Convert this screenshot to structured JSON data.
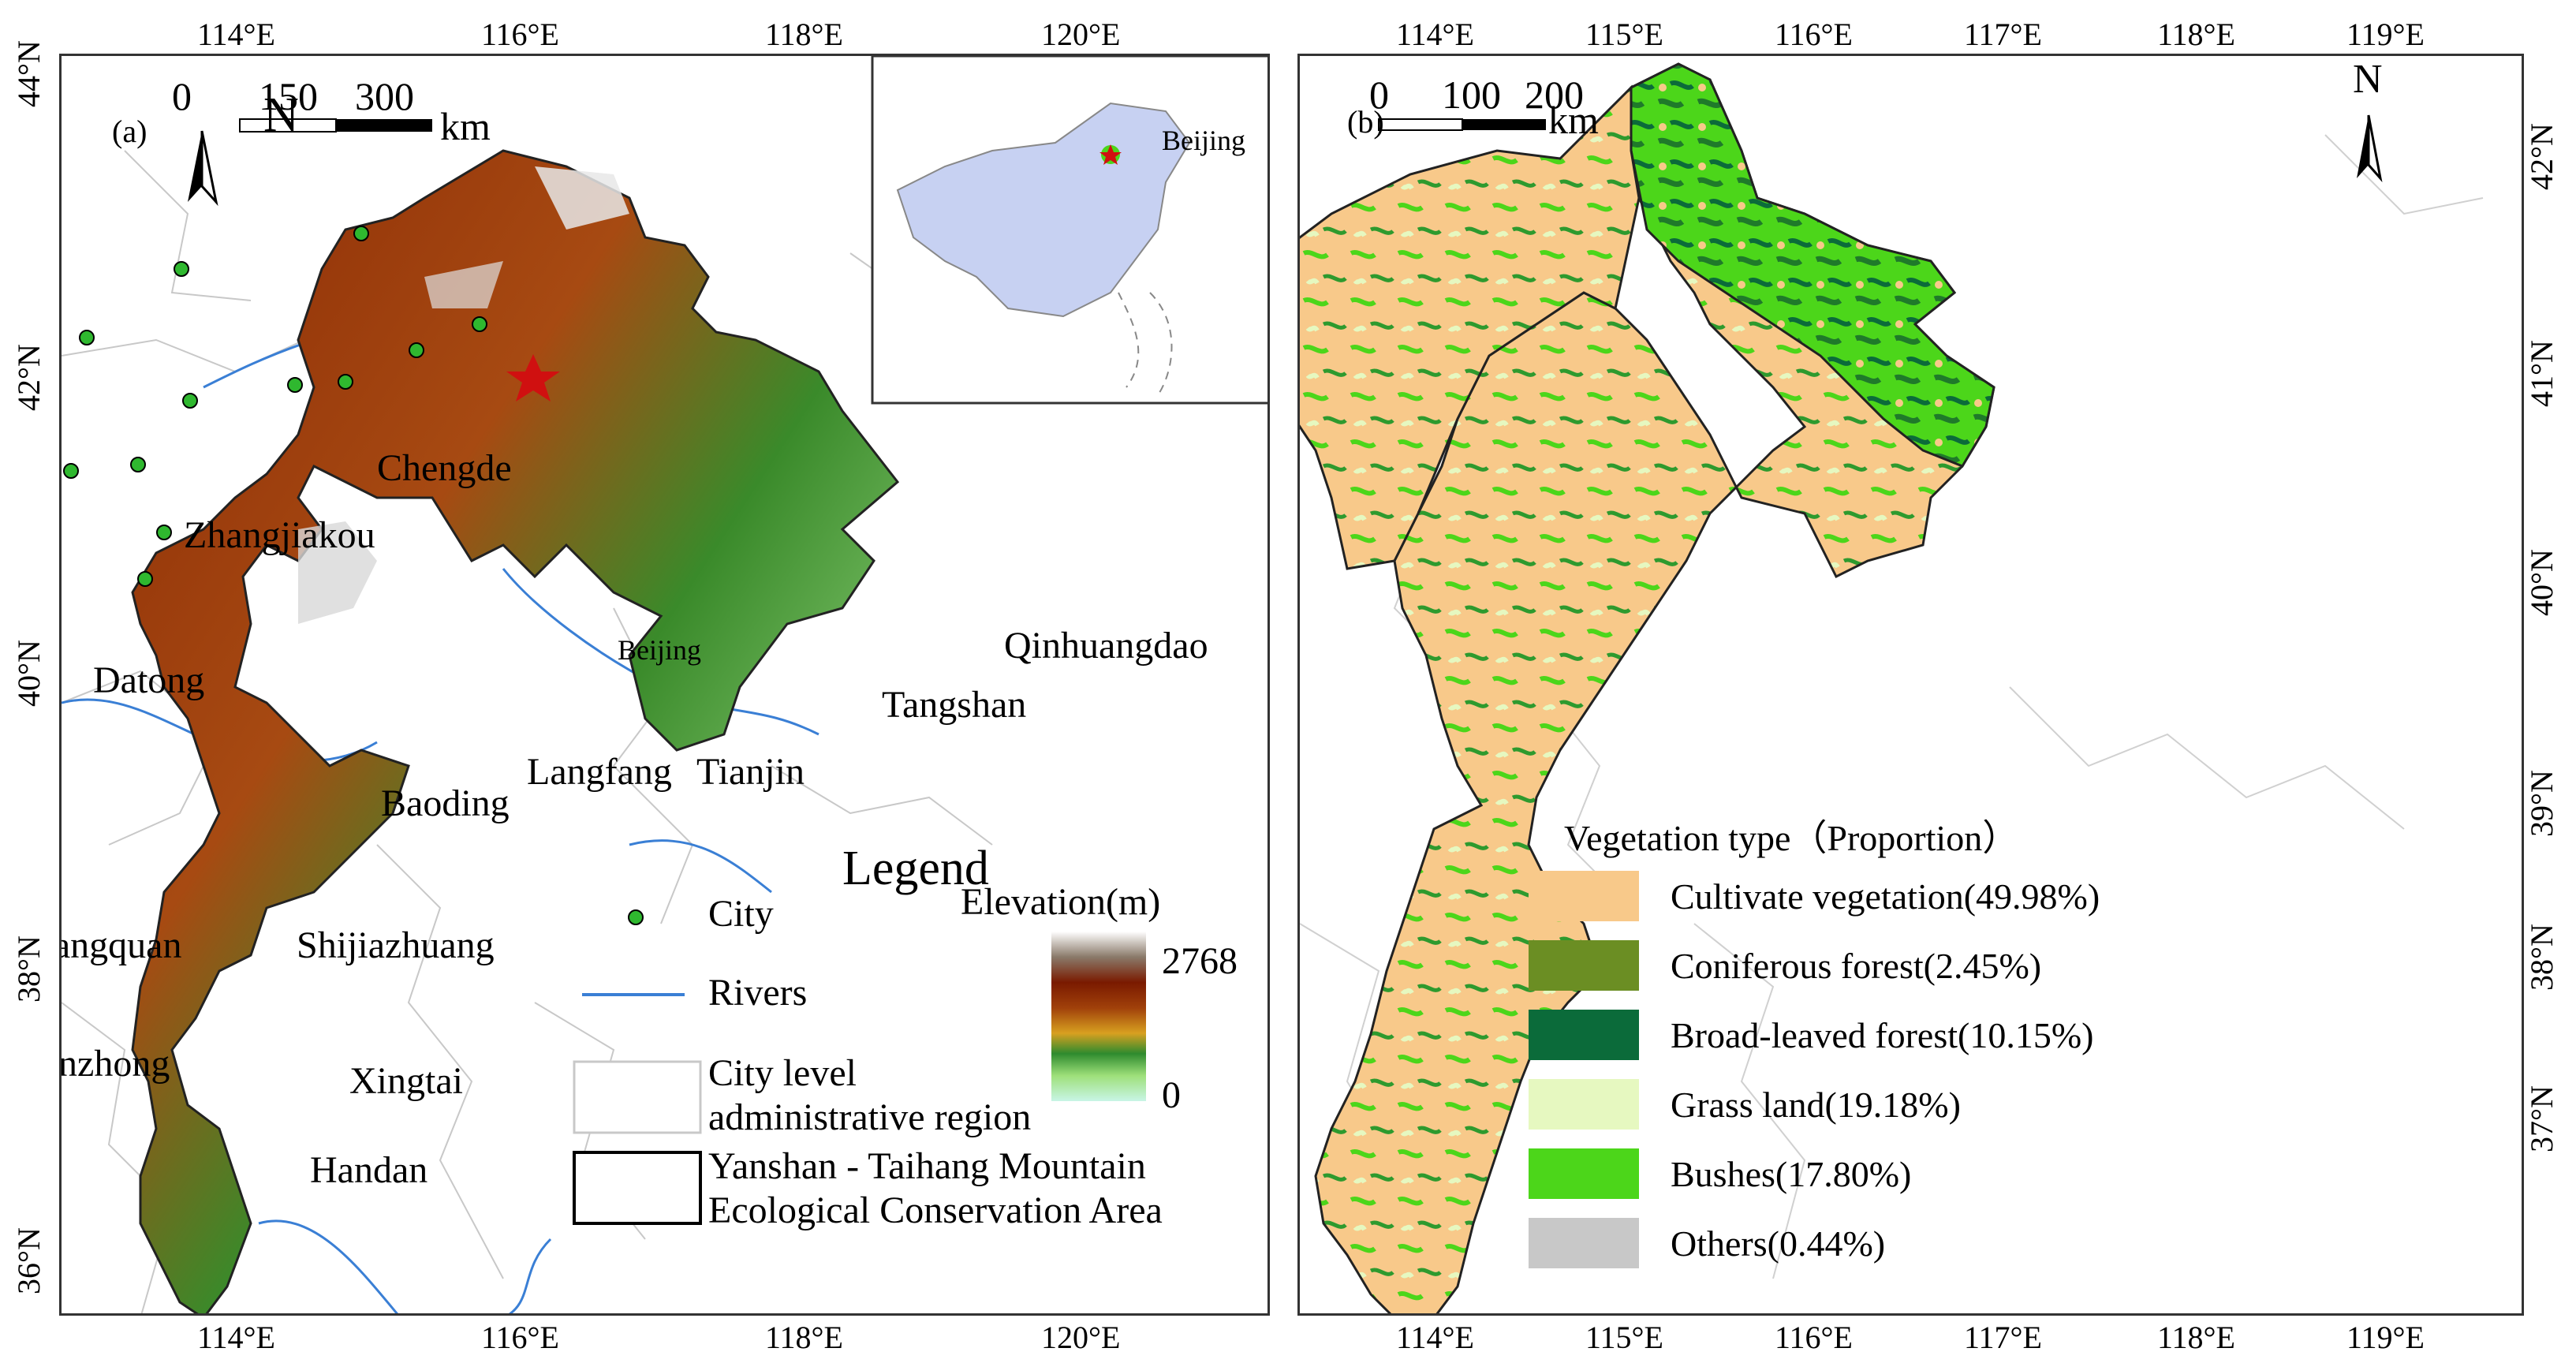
{
  "panel_a": {
    "panel_label": "(a)",
    "lon_ticks": [
      "114°E",
      "116°E",
      "118°E",
      "120°E"
    ],
    "lat_ticks": [
      "44°N",
      "42°N",
      "40°N",
      "38°N",
      "36°N"
    ],
    "north_label": "N",
    "scale_labels": [
      "0",
      "150",
      "300"
    ],
    "scale_unit": "km",
    "inset_label": "Beijing",
    "cities": [
      {
        "name": "Chengde"
      },
      {
        "name": "Zhangjiakou"
      },
      {
        "name": "Beijing"
      },
      {
        "name": "Qinhuangdao"
      },
      {
        "name": "Datong"
      },
      {
        "name": "Tangshan"
      },
      {
        "name": "Langfang"
      },
      {
        "name": "Tianjin"
      },
      {
        "name": "Baoding"
      },
      {
        "name": "Yangquan"
      },
      {
        "name": "Shijiazhuang"
      },
      {
        "name": "Jinzhong"
      },
      {
        "name": "Xingtai"
      },
      {
        "name": "Handan"
      }
    ],
    "legend": {
      "title": "Legend",
      "city": "City",
      "rivers": "Rivers",
      "admin_line1": "City level",
      "admin_line2": "administrative region",
      "area_line1": "Yanshan - Taihang Mountain",
      "area_line2": "Ecological Conservation Area",
      "elevation_title": "Elevation(m)",
      "elevation_max": "2768",
      "elevation_min": "0"
    }
  },
  "panel_b": {
    "panel_label": "(b)",
    "lon_ticks": [
      "114°E",
      "115°E",
      "116°E",
      "117°E",
      "118°E",
      "119°E"
    ],
    "lat_ticks": [
      "42°N",
      "41°N",
      "40°N",
      "39°N",
      "38°N",
      "37°N"
    ],
    "north_label": "N",
    "scale_labels": [
      "0",
      "100",
      "200"
    ],
    "scale_unit": "km",
    "legend": {
      "title": "Vegetation type（Proportion）",
      "items": [
        {
          "label": "Cultivate vegetation(49.98%)",
          "color": "#f8c98a"
        },
        {
          "label": "Coniferous forest(2.45%)",
          "color": "#6b8e23"
        },
        {
          "label": "Broad-leaved forest(10.15%)",
          "color": "#0b6b3a"
        },
        {
          "label": "Grass land(19.18%)",
          "color": "#e6f8c0"
        },
        {
          "label": "Bushes(17.80%)",
          "color": "#4cd61a"
        },
        {
          "label": "Others(0.44%)",
          "color": "#c8c8c8"
        }
      ]
    }
  },
  "colors": {
    "elev_high": "#6b1a00",
    "elev_mid": "#3f8f2a",
    "elev_low": "#bff0d8",
    "river": "#3a7fd5",
    "star": "#d01010",
    "city_dot": "#2fb82f"
  }
}
